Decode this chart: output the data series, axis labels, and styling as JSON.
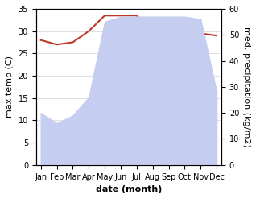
{
  "months": [
    "Jan",
    "Feb",
    "Mar",
    "Apr",
    "May",
    "Jun",
    "Jul",
    "Aug",
    "Sep",
    "Oct",
    "Nov",
    "Dec"
  ],
  "x": [
    0,
    1,
    2,
    3,
    4,
    5,
    6,
    7,
    8,
    9,
    10,
    11
  ],
  "temp": [
    28.0,
    27.0,
    27.5,
    30.0,
    33.5,
    33.5,
    33.5,
    29.5,
    32.5,
    31.0,
    29.5,
    29.0
  ],
  "precip": [
    20,
    16,
    19,
    26,
    55,
    57,
    57,
    57,
    57,
    57,
    56,
    28
  ],
  "xlabel": "date (month)",
  "ylabel_left": "max temp (C)",
  "ylabel_right": "med. precipitation (kg/m2)",
  "ylim_left": [
    0,
    35
  ],
  "ylim_right": [
    0,
    60
  ],
  "temp_color": "#c0392b",
  "precip_fill_color": "#c5cdf0",
  "bg_color": "#ffffff",
  "tick_fontsize": 7,
  "label_fontsize": 8
}
